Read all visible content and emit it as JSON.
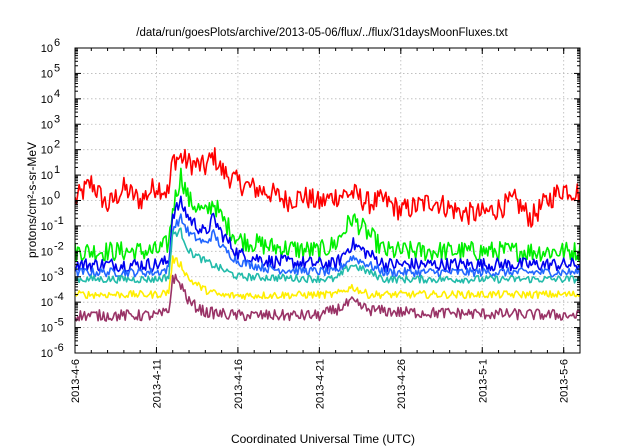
{
  "chart_data": {
    "type": "line",
    "title": "/data/run/goesPlots/archive/2013-05-06/flux/../flux/31daysMoonFluxes.txt",
    "xlabel": "Coordinated Universal Time (UTC)",
    "ylabel": "protons/cm²-s-sr-MeV",
    "yscale": "log",
    "ylim": [
      1e-06,
      1000000.0
    ],
    "xlim": [
      "2013-04-06",
      "2013-05-07"
    ],
    "grid": true,
    "x_ticks": [
      "2013-4-6",
      "2013-4-11",
      "2013-4-16",
      "2013-4-21",
      "2013-4-26",
      "2013-5-1",
      "2013-5-6"
    ],
    "y_ticks": [
      {
        "exp": -6,
        "base": "10",
        "sup": "-6"
      },
      {
        "exp": -5,
        "base": "10",
        "sup": "-5"
      },
      {
        "exp": -4,
        "base": "10",
        "sup": "-4"
      },
      {
        "exp": -3,
        "base": "10",
        "sup": "-3"
      },
      {
        "exp": -2,
        "base": "10",
        "sup": "-2"
      },
      {
        "exp": -1,
        "base": "10",
        "sup": "-1"
      },
      {
        "exp": 0,
        "base": "10",
        "sup": "0"
      },
      {
        "exp": 1,
        "base": "10",
        "sup": "1"
      },
      {
        "exp": 2,
        "base": "10",
        "sup": "2"
      },
      {
        "exp": 3,
        "base": "10",
        "sup": "3"
      },
      {
        "exp": 4,
        "base": "10",
        "sup": "4"
      },
      {
        "exp": 5,
        "base": "10",
        "sup": "5"
      },
      {
        "exp": 6,
        "base": "10",
        "sup": "6"
      }
    ],
    "series": [
      {
        "color": "#ff0000",
        "noise": 0.9,
        "points": [
          [
            "2013-04-06",
            1.0
          ],
          [
            "2013-04-07",
            5.0
          ],
          [
            "2013-04-08",
            0.6
          ],
          [
            "2013-04-09",
            3.0
          ],
          [
            "2013-04-10",
            1.0
          ],
          [
            "2013-04-11",
            4.0
          ],
          [
            "2013-04-11 18:00",
            2.0
          ],
          [
            "2013-04-12",
            40.0
          ],
          [
            "2013-04-12 12:00",
            50.0
          ],
          [
            "2013-04-13",
            30.0
          ],
          [
            "2013-04-14",
            20.0
          ],
          [
            "2013-04-14 12:00",
            60.0
          ],
          [
            "2013-04-15",
            15.0
          ],
          [
            "2013-04-16",
            5.0
          ],
          [
            "2013-04-17",
            3.0
          ],
          [
            "2013-04-18",
            2.0
          ],
          [
            "2013-04-19",
            1.0
          ],
          [
            "2013-04-20",
            1.5
          ],
          [
            "2013-04-21",
            0.8
          ],
          [
            "2013-04-22",
            1.5
          ],
          [
            "2013-04-23",
            2.0
          ],
          [
            "2013-04-24",
            0.8
          ],
          [
            "2013-04-25",
            1.0
          ],
          [
            "2013-04-26",
            0.4
          ],
          [
            "2013-04-27",
            0.6
          ],
          [
            "2013-04-28",
            1.0
          ],
          [
            "2013-04-29",
            0.5
          ],
          [
            "2013-04-30",
            0.3
          ],
          [
            "2013-05-01",
            0.3
          ],
          [
            "2013-05-02",
            0.5
          ],
          [
            "2013-05-03",
            1.0
          ],
          [
            "2013-05-04",
            0.2
          ],
          [
            "2013-05-05",
            1.0
          ],
          [
            "2013-05-06",
            3.0
          ],
          [
            "2013-05-07",
            2.0
          ]
        ]
      },
      {
        "color": "#00ee00",
        "noise": 0.8,
        "points": [
          [
            "2013-04-06",
            0.01
          ],
          [
            "2013-04-11",
            0.01
          ],
          [
            "2013-04-11 18:00",
            0.02
          ],
          [
            "2013-04-12",
            0.5
          ],
          [
            "2013-04-12 12:00",
            10.0
          ],
          [
            "2013-04-13",
            1.0
          ],
          [
            "2013-04-14",
            0.3
          ],
          [
            "2013-04-14 12:00",
            0.9
          ],
          [
            "2013-04-15",
            0.2
          ],
          [
            "2013-04-16",
            0.03
          ],
          [
            "2013-04-18",
            0.015
          ],
          [
            "2013-04-21",
            0.01
          ],
          [
            "2013-04-22",
            0.02
          ],
          [
            "2013-04-23",
            0.2
          ],
          [
            "2013-04-24",
            0.05
          ],
          [
            "2013-04-25",
            0.01
          ],
          [
            "2013-05-07",
            0.01
          ]
        ]
      },
      {
        "color": "#0000ee",
        "noise": 0.55,
        "points": [
          [
            "2013-04-06",
            0.003
          ],
          [
            "2013-04-11",
            0.003
          ],
          [
            "2013-04-11 18:00",
            0.004
          ],
          [
            "2013-04-12",
            0.3
          ],
          [
            "2013-04-12 12:00",
            0.8
          ],
          [
            "2013-04-13",
            0.2
          ],
          [
            "2013-04-14",
            0.05
          ],
          [
            "2013-04-14 12:00",
            0.2
          ],
          [
            "2013-04-15",
            0.05
          ],
          [
            "2013-04-16",
            0.008
          ],
          [
            "2013-04-18",
            0.004
          ],
          [
            "2013-04-22",
            0.003
          ],
          [
            "2013-04-23",
            0.02
          ],
          [
            "2013-04-24",
            0.008
          ],
          [
            "2013-04-25",
            0.003
          ],
          [
            "2013-05-07",
            0.003
          ]
        ]
      },
      {
        "color": "#2266ff",
        "noise": 0.35,
        "points": [
          [
            "2013-04-06",
            0.0015
          ],
          [
            "2013-04-11",
            0.0015
          ],
          [
            "2013-04-11 18:00",
            0.002
          ],
          [
            "2013-04-12",
            0.08
          ],
          [
            "2013-04-12 12:00",
            0.2
          ],
          [
            "2013-04-13",
            0.05
          ],
          [
            "2013-04-14",
            0.02
          ],
          [
            "2013-04-14 12:00",
            0.05
          ],
          [
            "2013-04-15",
            0.015
          ],
          [
            "2013-04-16",
            0.004
          ],
          [
            "2013-04-18",
            0.002
          ],
          [
            "2013-04-22",
            0.0015
          ],
          [
            "2013-04-23",
            0.006
          ],
          [
            "2013-04-25",
            0.0015
          ],
          [
            "2013-05-07",
            0.0015
          ]
        ]
      },
      {
        "color": "#22bbaa",
        "noise": 0.3,
        "points": [
          [
            "2013-04-06",
            0.0008
          ],
          [
            "2013-04-11",
            0.0008
          ],
          [
            "2013-04-11 18:00",
            0.001
          ],
          [
            "2013-04-12",
            0.05
          ],
          [
            "2013-04-12 12:00",
            0.06
          ],
          [
            "2013-04-13",
            0.01
          ],
          [
            "2013-04-14",
            0.004
          ],
          [
            "2013-04-15",
            0.002
          ],
          [
            "2013-04-16",
            0.001
          ],
          [
            "2013-04-22",
            0.0008
          ],
          [
            "2013-04-23",
            0.003
          ],
          [
            "2013-04-25",
            0.0008
          ],
          [
            "2013-05-07",
            0.0008
          ]
        ]
      },
      {
        "color": "#ffee00",
        "noise": 0.3,
        "points": [
          [
            "2013-04-06",
            0.0002
          ],
          [
            "2013-04-11",
            0.0002
          ],
          [
            "2013-04-11 18:00",
            0.00025
          ],
          [
            "2013-04-12",
            0.005
          ],
          [
            "2013-04-12 12:00",
            0.003
          ],
          [
            "2013-04-13",
            0.0008
          ],
          [
            "2013-04-14",
            0.0003
          ],
          [
            "2013-04-15",
            0.00018
          ],
          [
            "2013-04-22",
            0.0002
          ],
          [
            "2013-04-23",
            0.0004
          ],
          [
            "2013-04-24",
            0.0002
          ],
          [
            "2013-05-07",
            0.0002
          ]
        ]
      },
      {
        "color": "#993366",
        "noise": 0.45,
        "points": [
          [
            "2013-04-06",
            3e-05
          ],
          [
            "2013-04-11",
            3e-05
          ],
          [
            "2013-04-11 18:00",
            4e-05
          ],
          [
            "2013-04-12",
            0.001
          ],
          [
            "2013-04-12 12:00",
            0.0005
          ],
          [
            "2013-04-13",
            0.0001
          ],
          [
            "2013-04-14",
            4e-05
          ],
          [
            "2013-04-16",
            3e-05
          ],
          [
            "2013-04-21",
            3e-05
          ],
          [
            "2013-04-22",
            5e-05
          ],
          [
            "2013-04-23",
            0.0001
          ],
          [
            "2013-04-24",
            5e-05
          ],
          [
            "2013-04-26",
            4e-05
          ],
          [
            "2013-05-07",
            3e-05
          ]
        ]
      }
    ]
  }
}
